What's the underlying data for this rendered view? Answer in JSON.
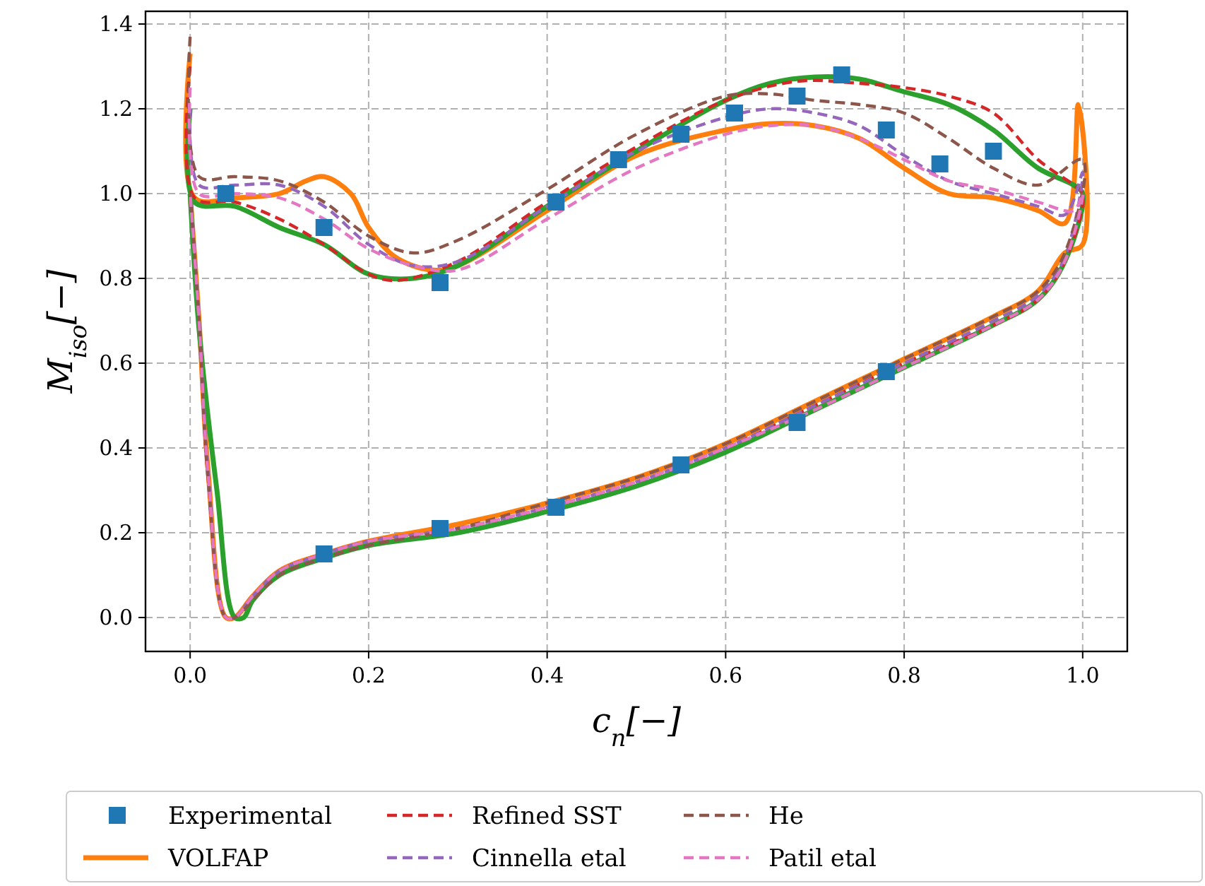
{
  "chart_data": {
    "type": "line",
    "xlabel": "c$_{n}$[−]",
    "ylabel": "M$_{iso}$[−]",
    "xlim": [
      -0.05,
      1.05
    ],
    "ylim": [
      -0.08,
      1.43
    ],
    "xticks": [
      {
        "value": 0,
        "label": "0.0"
      },
      {
        "value": 0.2,
        "label": "0.2"
      },
      {
        "value": 0.4,
        "label": "0.4"
      },
      {
        "value": 0.6,
        "label": "0.6"
      },
      {
        "value": 0.8,
        "label": "0.8"
      },
      {
        "value": 1,
        "label": "1.0"
      }
    ],
    "yticks": [
      {
        "value": 0,
        "label": "0.0"
      },
      {
        "value": 0.2,
        "label": "0.2"
      },
      {
        "value": 0.4,
        "label": "0.4"
      },
      {
        "value": 0.6,
        "label": "0.6"
      },
      {
        "value": 0.8,
        "label": "0.8"
      },
      {
        "value": 1,
        "label": "1.0"
      },
      {
        "value": 1.2,
        "label": "1.2"
      },
      {
        "value": 1.4,
        "label": "1.4"
      }
    ],
    "grid": true,
    "legend": "bottom",
    "series": [
      {
        "name": "Experimental",
        "type": "scatter",
        "marker": "square",
        "color": "#1f77b4",
        "x": [
          0.04,
          0.15,
          0.28,
          0.41,
          0.48,
          0.55,
          0.61,
          0.68,
          0.73,
          0.78,
          0.84,
          0.9,
          0.15,
          0.28,
          0.41,
          0.55,
          0.68,
          0.78
        ],
        "values": [
          1.0,
          0.92,
          0.79,
          0.98,
          1.08,
          1.14,
          1.19,
          1.23,
          1.28,
          1.15,
          1.07,
          1.1,
          0.15,
          0.21,
          0.26,
          0.36,
          0.46,
          0.58
        ]
      },
      {
        "name": "VOLFAP",
        "line_style": "solid",
        "color": "#ff7f0e",
        "x": [
          0,
          0.005,
          0.05,
          0.1,
          0.13,
          0.15,
          0.18,
          0.2,
          0.23,
          0.27,
          0.3,
          0.4,
          0.5,
          0.6,
          0.65,
          0.7,
          0.75,
          0.8,
          0.85,
          0.9,
          0.95,
          0.98,
          0.995,
          1.0,
          0.98,
          0.95,
          0.9,
          0.8,
          0.7,
          0.6,
          0.5,
          0.4,
          0.3,
          0.2,
          0.15,
          0.1,
          0.07,
          0.05,
          0.04,
          0.02,
          0.01,
          0
        ],
        "values": [
          1.33,
          0.99,
          0.99,
          1.0,
          1.03,
          1.04,
          1.0,
          0.92,
          0.85,
          0.82,
          0.83,
          0.96,
          1.09,
          1.15,
          1.165,
          1.16,
          1.13,
          1.06,
          1.0,
          0.99,
          0.96,
          0.93,
          1.21,
          0.88,
          0.86,
          0.77,
          0.71,
          0.61,
          0.51,
          0.41,
          0.33,
          0.27,
          0.22,
          0.18,
          0.15,
          0.11,
          0.05,
          0.0,
          0.0,
          0.35,
          0.7,
          1.0
        ]
      },
      {
        "line_style": "solid",
        "color": "#2ca02c",
        "x": [
          0,
          0.005,
          0.05,
          0.1,
          0.15,
          0.2,
          0.25,
          0.3,
          0.4,
          0.5,
          0.6,
          0.65,
          0.7,
          0.75,
          0.8,
          0.85,
          0.9,
          0.95,
          0.99,
          1.0,
          0.98,
          0.95,
          0.9,
          0.8,
          0.7,
          0.6,
          0.5,
          0.4,
          0.3,
          0.2,
          0.15,
          0.1,
          0.07,
          0.06,
          0.05,
          0.03,
          0.01,
          0
        ],
        "values": [
          1.2,
          0.98,
          0.97,
          0.92,
          0.88,
          0.81,
          0.8,
          0.83,
          0.97,
          1.1,
          1.22,
          1.26,
          1.275,
          1.27,
          1.24,
          1.21,
          1.15,
          1.06,
          1.02,
          1.0,
          0.84,
          0.75,
          0.69,
          0.59,
          0.49,
          0.39,
          0.31,
          0.25,
          0.2,
          0.17,
          0.14,
          0.1,
          0.04,
          0.0,
          0.0,
          0.3,
          0.68,
          1.0
        ]
      },
      {
        "name": "Refined SST",
        "line_style": "dashed",
        "color": "#d62728",
        "x": [
          0,
          0.005,
          0.05,
          0.1,
          0.15,
          0.2,
          0.23,
          0.3,
          0.4,
          0.5,
          0.6,
          0.68,
          0.75,
          0.8,
          0.85,
          0.9,
          0.95,
          0.99,
          1.0,
          0.98,
          0.95,
          0.9,
          0.8,
          0.7,
          0.6,
          0.5,
          0.4,
          0.3,
          0.2,
          0.15,
          0.1,
          0.07,
          0.05,
          0.04,
          0.02,
          0.01,
          0
        ],
        "values": [
          1.3,
          0.99,
          0.98,
          0.94,
          0.88,
          0.81,
          0.795,
          0.84,
          0.98,
          1.11,
          1.22,
          1.265,
          1.26,
          1.25,
          1.23,
          1.19,
          1.08,
          1.02,
          1.0,
          0.84,
          0.75,
          0.69,
          0.6,
          0.5,
          0.4,
          0.32,
          0.26,
          0.21,
          0.18,
          0.15,
          0.11,
          0.05,
          0.0,
          0.0,
          0.33,
          0.7,
          1.0
        ]
      },
      {
        "name": "Cinnella etal",
        "line_style": "dashed",
        "color": "#9467bd",
        "x": [
          0,
          0.01,
          0.05,
          0.1,
          0.15,
          0.2,
          0.25,
          0.3,
          0.4,
          0.5,
          0.6,
          0.65,
          0.7,
          0.75,
          0.8,
          0.85,
          0.9,
          0.95,
          0.98,
          1.0,
          0.98,
          0.95,
          0.9,
          0.8,
          0.7,
          0.6,
          0.5,
          0.4,
          0.3,
          0.2,
          0.15,
          0.1,
          0.07,
          0.05,
          0.04,
          0.02,
          0.01,
          0
        ],
        "values": [
          1.2,
          1.02,
          1.02,
          1.02,
          0.97,
          0.88,
          0.83,
          0.84,
          0.97,
          1.1,
          1.18,
          1.2,
          1.19,
          1.16,
          1.09,
          1.03,
          1.0,
          0.97,
          0.95,
          1.05,
          0.85,
          0.76,
          0.7,
          0.6,
          0.5,
          0.4,
          0.32,
          0.26,
          0.21,
          0.18,
          0.15,
          0.11,
          0.05,
          0.0,
          0.0,
          0.35,
          0.7,
          1.0
        ]
      },
      {
        "name": "He",
        "line_style": "dashed",
        "color": "#8c564b",
        "x": [
          0,
          0.01,
          0.05,
          0.1,
          0.15,
          0.2,
          0.25,
          0.3,
          0.4,
          0.5,
          0.6,
          0.65,
          0.7,
          0.75,
          0.8,
          0.85,
          0.9,
          0.95,
          1.0,
          0.98,
          0.95,
          0.9,
          0.8,
          0.7,
          0.6,
          0.5,
          0.4,
          0.3,
          0.2,
          0.15,
          0.1,
          0.07,
          0.05,
          0.04,
          0.02,
          0.01,
          0
        ],
        "values": [
          1.37,
          1.04,
          1.04,
          1.03,
          0.98,
          0.9,
          0.86,
          0.89,
          1.01,
          1.14,
          1.23,
          1.235,
          1.22,
          1.21,
          1.19,
          1.13,
          1.06,
          1.02,
          1.08,
          0.86,
          0.77,
          0.71,
          0.61,
          0.51,
          0.41,
          0.33,
          0.27,
          0.21,
          0.17,
          0.14,
          0.1,
          0.04,
          0.0,
          0.0,
          0.33,
          0.7,
          1.0
        ]
      },
      {
        "name": "Patil etal",
        "line_style": "dashed",
        "color": "#e377c2",
        "x": [
          0,
          0.01,
          0.05,
          0.1,
          0.15,
          0.2,
          0.25,
          0.3,
          0.4,
          0.5,
          0.6,
          0.65,
          0.7,
          0.75,
          0.8,
          0.85,
          0.9,
          0.95,
          0.99,
          1.0,
          0.98,
          0.95,
          0.9,
          0.8,
          0.7,
          0.6,
          0.5,
          0.4,
          0.3,
          0.2,
          0.15,
          0.1,
          0.07,
          0.05,
          0.04,
          0.02,
          0.01,
          0
        ],
        "values": [
          1.25,
          1.0,
          1.0,
          0.99,
          0.94,
          0.87,
          0.83,
          0.82,
          0.94,
          1.06,
          1.14,
          1.16,
          1.16,
          1.13,
          1.08,
          1.03,
          1.01,
          0.98,
          0.96,
          1.0,
          0.84,
          0.75,
          0.69,
          0.59,
          0.49,
          0.4,
          0.32,
          0.26,
          0.21,
          0.18,
          0.15,
          0.11,
          0.05,
          0.0,
          0.0,
          0.34,
          0.7,
          1.0
        ]
      }
    ]
  }
}
